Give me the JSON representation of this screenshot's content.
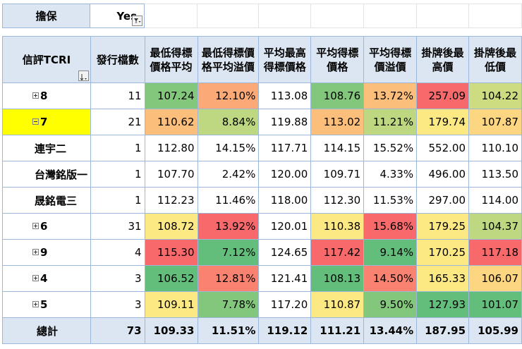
{
  "filter": {
    "field": "擔保",
    "value": "Yes"
  },
  "headers": {
    "row_field": "信評TCRI",
    "cols": [
      [
        "發行檔數"
      ],
      [
        "最低得標",
        "價格平均"
      ],
      [
        "最低得標價",
        "格平均溢價"
      ],
      [
        "平均最高",
        "得標價格"
      ],
      [
        "平均得標",
        "價格"
      ],
      [
        "平均得標",
        "價溢價"
      ],
      [
        "掛牌後最",
        "高價"
      ],
      [
        "掛牌後最",
        "低價"
      ]
    ]
  },
  "rows": [
    {
      "label": "8",
      "type": "collapsed",
      "values": [
        "11",
        "107.24",
        "12.10%",
        "113.08",
        "108.76",
        "13.72%",
        "257.09",
        "104.22"
      ]
    },
    {
      "label": "7",
      "type": "expanded",
      "values": [
        "21",
        "110.62",
        "8.84%",
        "119.88",
        "113.02",
        "11.21%",
        "179.74",
        "107.87"
      ]
    },
    {
      "label": "連宇二",
      "type": "child",
      "values": [
        "1",
        "112.80",
        "14.15%",
        "117.71",
        "114.15",
        "15.52%",
        "552.00",
        "110.10"
      ]
    },
    {
      "label": "台灣銘版一",
      "type": "child",
      "values": [
        "1",
        "107.70",
        "2.42%",
        "120.00",
        "109.71",
        "4.33%",
        "496.00",
        "113.50"
      ]
    },
    {
      "label": "晟銘電三",
      "type": "child",
      "values": [
        "1",
        "112.23",
        "11.46%",
        "118.00",
        "112.30",
        "11.53%",
        "297.00",
        "114.00"
      ]
    },
    {
      "label": "6",
      "type": "collapsed",
      "values": [
        "31",
        "108.72",
        "13.92%",
        "120.01",
        "110.38",
        "15.68%",
        "179.25",
        "104.37"
      ]
    },
    {
      "label": "9",
      "type": "collapsed",
      "values": [
        "4",
        "115.30",
        "7.12%",
        "124.65",
        "117.42",
        "9.14%",
        "170.25",
        "117.18"
      ]
    },
    {
      "label": "4",
      "type": "collapsed",
      "values": [
        "3",
        "106.52",
        "12.81%",
        "121.41",
        "108.13",
        "14.50%",
        "165.33",
        "106.07"
      ]
    },
    {
      "label": "5",
      "type": "collapsed",
      "values": [
        "3",
        "109.11",
        "7.78%",
        "117.20",
        "110.87",
        "9.50%",
        "127.93",
        "101.07"
      ]
    }
  ],
  "total": {
    "label": "總計",
    "values": [
      "73",
      "109.33",
      "11.51%",
      "119.12",
      "111.21",
      "13.44%",
      "187.95",
      "105.99"
    ]
  },
  "heatmap": [
    [
      "",
      "c-g2",
      "c-o2",
      "",
      "c-g2",
      "c-o",
      "c-r",
      "c-yg"
    ],
    [
      "",
      "c-o",
      "c-lg",
      "",
      "c-o",
      "c-lg",
      "c-y",
      "c-y2"
    ],
    [
      "",
      "",
      "",
      "",
      "",
      "",
      "",
      ""
    ],
    [
      "",
      "",
      "",
      "",
      "",
      "",
      "",
      ""
    ],
    [
      "",
      "",
      "",
      "",
      "",
      "",
      "",
      ""
    ],
    [
      "",
      "c-y",
      "c-r",
      "",
      "c-y",
      "c-r",
      "c-y",
      "c-lg"
    ],
    [
      "",
      "c-r",
      "c-g1",
      "",
      "c-r",
      "c-g1",
      "c-y",
      "c-r"
    ],
    [
      "",
      "c-g1",
      "c-r2",
      "",
      "c-g1",
      "c-r2",
      "c-y",
      "c-y2"
    ],
    [
      "",
      "c-y",
      "c-g2",
      "",
      "c-y",
      "c-g2",
      "c-g1",
      "c-g1"
    ]
  ]
}
